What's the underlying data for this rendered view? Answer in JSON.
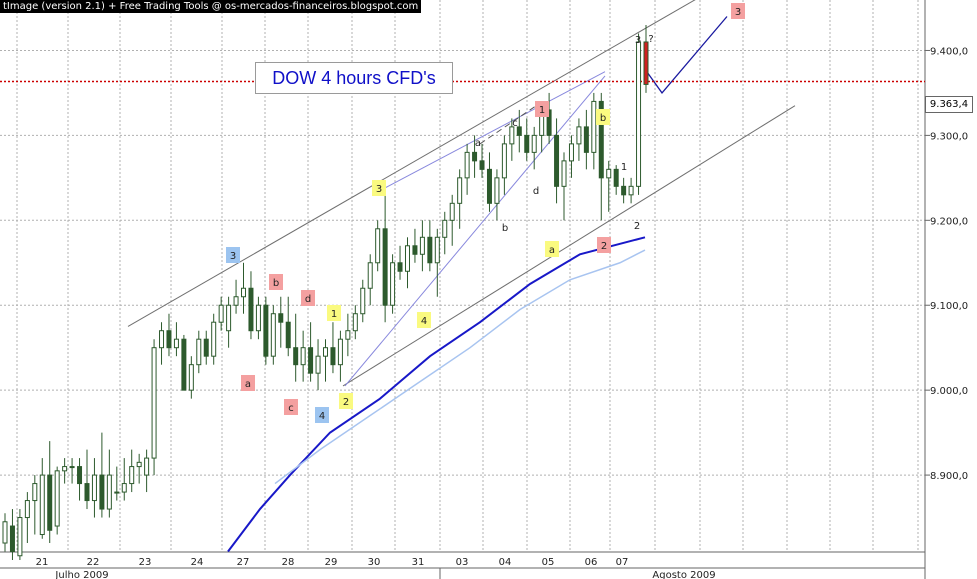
{
  "header_text": "tImage (version 2.1) + Free Trading Tools @ os-mercados-financeiros.blogspot.com",
  "current_price_label": "9.363,4",
  "chart_data": {
    "type": "candlestick",
    "title": "DOW 4 hours CFD's",
    "y_ticks": [
      "9.400,0",
      "9.300,0",
      "9.200,0",
      "9.100,0",
      "9.000,0",
      "8.900,0"
    ],
    "y_tick_values": [
      9400,
      9300,
      9200,
      9100,
      9000,
      8900
    ],
    "ylim": [
      8800,
      9450
    ],
    "x_ticks": [
      "21",
      "22",
      "23",
      "24",
      "27",
      "28",
      "29",
      "30",
      "31",
      "03",
      "04",
      "05",
      "06",
      "07"
    ],
    "month_labels": [
      "Julho 2009",
      "Agosto 2009"
    ],
    "current_price": 9363.4,
    "series": [
      {
        "name": "price",
        "ohlc": [
          [
            8820,
            8855,
            8810,
            8845
          ],
          [
            8840,
            8860,
            8800,
            8810
          ],
          [
            8805,
            8860,
            8800,
            8850
          ],
          [
            8850,
            8880,
            8820,
            8870
          ],
          [
            8870,
            8900,
            8830,
            8890
          ],
          [
            8830,
            8920,
            8825,
            8900
          ],
          [
            8900,
            8940,
            8820,
            8835
          ],
          [
            8840,
            8910,
            8830,
            8905
          ],
          [
            8905,
            8920,
            8890,
            8910
          ],
          [
            8910,
            8920,
            8890,
            8910
          ],
          [
            8910,
            8920,
            8870,
            8890
          ],
          [
            8890,
            8930,
            8860,
            8870
          ],
          [
            8870,
            8920,
            8850,
            8900
          ],
          [
            8900,
            8950,
            8850,
            8860
          ],
          [
            8860,
            8930,
            8850,
            8900
          ],
          [
            8880,
            8910,
            8870,
            8880
          ],
          [
            8880,
            8920,
            8870,
            8890
          ],
          [
            8890,
            8930,
            8880,
            8910
          ],
          [
            8910,
            8925,
            8890,
            8915
          ],
          [
            8900,
            8930,
            8880,
            8920
          ],
          [
            8920,
            9060,
            8900,
            9050
          ],
          [
            9050,
            9080,
            9030,
            9070
          ],
          [
            9070,
            9090,
            9040,
            9050
          ],
          [
            9050,
            9080,
            9040,
            9060
          ],
          [
            9060,
            9065,
            9000,
            9000
          ],
          [
            9000,
            9040,
            8990,
            9030
          ],
          [
            9030,
            9070,
            9020,
            9060
          ],
          [
            9060,
            9070,
            9030,
            9040
          ],
          [
            9040,
            9090,
            9030,
            9080
          ],
          [
            9080,
            9110,
            9070,
            9100
          ],
          [
            9070,
            9110,
            9050,
            9100
          ],
          [
            9100,
            9130,
            9090,
            9110
          ],
          [
            9110,
            9150,
            9090,
            9120
          ],
          [
            9120,
            9140,
            9060,
            9070
          ],
          [
            9070,
            9110,
            9060,
            9100
          ],
          [
            9100,
            9110,
            9030,
            9040
          ],
          [
            9040,
            9100,
            9030,
            9090
          ],
          [
            9090,
            9110,
            9050,
            9080
          ],
          [
            9080,
            9110,
            9040,
            9050
          ],
          [
            9050,
            9090,
            9010,
            9030
          ],
          [
            9030,
            9070,
            9010,
            9050
          ],
          [
            9050,
            9080,
            9010,
            9020
          ],
          [
            9020,
            9060,
            9000,
            9040
          ],
          [
            9040,
            9060,
            9010,
            9050
          ],
          [
            9050,
            9080,
            9020,
            9030
          ],
          [
            9030,
            9070,
            9010,
            9060
          ],
          [
            9060,
            9090,
            9040,
            9070
          ],
          [
            9070,
            9100,
            9060,
            9090
          ],
          [
            9090,
            9130,
            9080,
            9120
          ],
          [
            9120,
            9160,
            9100,
            9150
          ],
          [
            9150,
            9200,
            9140,
            9190
          ],
          [
            9190,
            9240,
            9080,
            9100
          ],
          [
            9100,
            9160,
            9090,
            9150
          ],
          [
            9150,
            9170,
            9130,
            9140
          ],
          [
            9140,
            9180,
            9120,
            9170
          ],
          [
            9170,
            9190,
            9150,
            9160
          ],
          [
            9160,
            9200,
            9140,
            9180
          ],
          [
            9180,
            9200,
            9140,
            9150
          ],
          [
            9150,
            9190,
            9110,
            9180
          ],
          [
            9180,
            9210,
            9160,
            9200
          ],
          [
            9200,
            9230,
            9170,
            9220
          ],
          [
            9220,
            9260,
            9190,
            9250
          ],
          [
            9250,
            9290,
            9230,
            9280
          ],
          [
            9280,
            9300,
            9250,
            9270
          ],
          [
            9270,
            9290,
            9250,
            9260
          ],
          [
            9260,
            9280,
            9210,
            9220
          ],
          [
            9220,
            9260,
            9200,
            9250
          ],
          [
            9250,
            9300,
            9230,
            9290
          ],
          [
            9290,
            9320,
            9270,
            9310
          ],
          [
            9310,
            9330,
            9280,
            9300
          ],
          [
            9300,
            9320,
            9270,
            9280
          ],
          [
            9280,
            9310,
            9260,
            9300
          ],
          [
            9300,
            9340,
            9280,
            9330
          ],
          [
            9330,
            9350,
            9290,
            9300
          ],
          [
            9300,
            9320,
            9220,
            9240
          ],
          [
            9240,
            9280,
            9200,
            9270
          ],
          [
            9270,
            9300,
            9250,
            9290
          ],
          [
            9290,
            9320,
            9270,
            9310
          ],
          [
            9310,
            9330,
            9260,
            9280
          ],
          [
            9280,
            9350,
            9260,
            9340
          ],
          [
            9340,
            9350,
            9200,
            9250
          ],
          [
            9250,
            9270,
            9210,
            9260
          ],
          [
            9260,
            9265,
            9230,
            9240
          ],
          [
            9240,
            9250,
            9220,
            9230
          ],
          [
            9230,
            9250,
            9220,
            9240
          ],
          [
            9240,
            9420,
            9230,
            9410
          ],
          [
            9410,
            9430,
            9350,
            9360
          ]
        ]
      },
      {
        "name": "moving average (blue)",
        "values": [
          8790,
          8810,
          8840,
          8880,
          8930,
          8990,
          9040,
          9090,
          9140,
          9190
        ],
        "x_ticks_at": [
          "27",
          "28",
          "29",
          "30",
          "31",
          "03",
          "04",
          "05",
          "06",
          "07"
        ]
      },
      {
        "name": "moving average (light blue)",
        "values": [
          8830,
          8870,
          8910,
          8960,
          9010,
          9060,
          9100,
          9140,
          9170,
          9200
        ],
        "x_ticks_at": [
          "28",
          "29",
          "30",
          "31",
          "03",
          "04",
          "05",
          "06",
          "07",
          "07"
        ]
      }
    ],
    "annotations": [
      {
        "text": "3",
        "style": "blue-box"
      },
      {
        "text": "4",
        "style": "blue-box"
      },
      {
        "text": "b",
        "style": "red-box"
      },
      {
        "text": "a",
        "style": "red-box"
      },
      {
        "text": "d",
        "style": "red-box"
      },
      {
        "text": "c",
        "style": "red-box"
      },
      {
        "text": "1",
        "style": "red-box"
      },
      {
        "text": "2",
        "style": "red-box"
      },
      {
        "text": "3",
        "style": "red-box"
      },
      {
        "text": "1",
        "style": "yellow-box"
      },
      {
        "text": "2",
        "style": "yellow-box"
      },
      {
        "text": "3",
        "style": "yellow-box"
      },
      {
        "text": "4",
        "style": "yellow-box"
      },
      {
        "text": "a",
        "style": "yellow-box"
      },
      {
        "text": "b",
        "style": "yellow-box"
      },
      {
        "text": "a",
        "style": "plain"
      },
      {
        "text": "b",
        "style": "plain"
      },
      {
        "text": "c",
        "style": "plain"
      },
      {
        "text": "d",
        "style": "plain"
      },
      {
        "text": "1",
        "style": "plain"
      },
      {
        "text": "2",
        "style": "plain"
      },
      {
        "text": "3",
        "style": "plain"
      },
      {
        "text": "?",
        "style": "plain"
      }
    ],
    "grid": true,
    "colors": {
      "candle": "#2d5a2d",
      "ma_fast": "#1818c8",
      "ma_slow": "#a8c4f0",
      "channel": "#707070",
      "price_line": "#cc0000",
      "red_box": "#f4a0a0",
      "blue_box": "#9cc4f0",
      "yellow_box": "#fafa80"
    }
  }
}
